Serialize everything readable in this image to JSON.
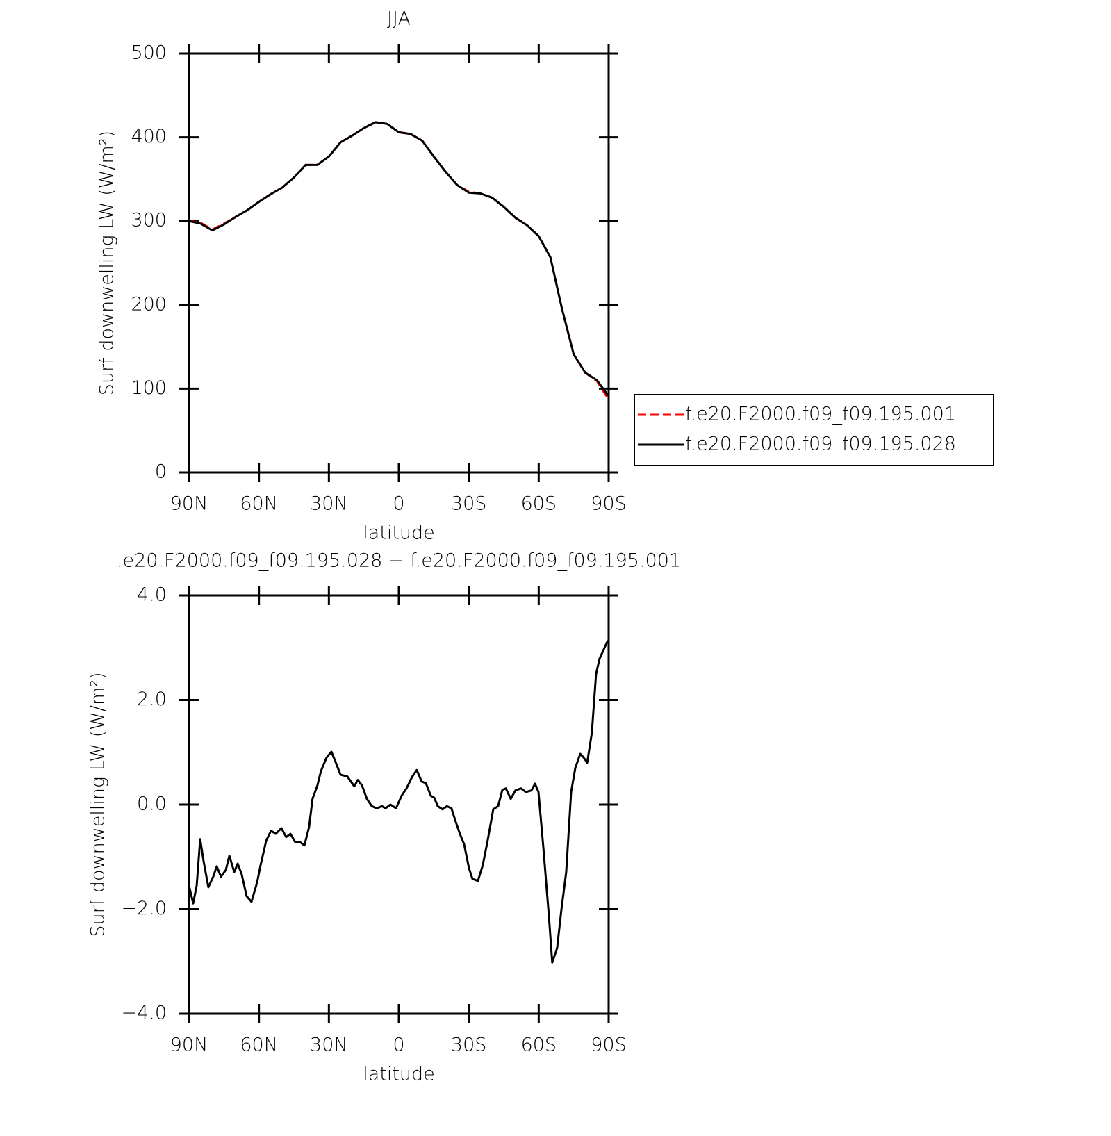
{
  "chart_data": [
    {
      "type": "line",
      "title": "JJA",
      "x_label": "latitude",
      "y_label": "Surf downwelling LW (W/m²)",
      "x": [
        90,
        85,
        80,
        75,
        70,
        65,
        60,
        55,
        50,
        45,
        40,
        35,
        30,
        25,
        20,
        15,
        10,
        5,
        0,
        -5,
        -10,
        -15,
        -20,
        -25,
        -30,
        -35,
        -40,
        -45,
        -50,
        -55,
        -60,
        -65,
        -70,
        -75,
        -80,
        -85,
        -90
      ],
      "series": [
        {
          "name": "f.e20.F2000.f09_f09.195.001",
          "color": "#ff0000",
          "dash": true,
          "values": [
            300,
            298,
            290,
            297,
            305,
            313,
            323,
            332,
            340,
            352,
            367,
            367,
            377,
            394,
            402,
            411,
            418,
            416,
            406,
            404,
            396,
            377,
            359,
            343,
            335,
            333,
            328,
            317,
            304,
            295,
            282,
            257,
            195,
            141,
            119,
            109,
            87
          ]
        },
        {
          "name": "f.e20.F2000.f09_f09.195.028",
          "color": "#000000",
          "dash": false,
          "values": [
            300,
            297,
            289,
            296,
            305,
            313,
            323,
            332,
            340,
            352,
            367,
            367,
            377,
            394,
            402,
            411,
            418,
            416,
            406,
            404,
            396,
            377,
            359,
            343,
            334,
            333,
            328,
            317,
            304,
            295,
            282,
            257,
            195,
            141,
            119,
            110,
            91
          ]
        }
      ],
      "xlim": [
        90,
        -90
      ],
      "ylim": [
        0,
        500
      ],
      "xticks": [
        {
          "value": 90,
          "label": "90N"
        },
        {
          "value": 60,
          "label": "60N"
        },
        {
          "value": 30,
          "label": "30N"
        },
        0,
        {
          "value": -30,
          "label": "30S"
        },
        {
          "value": -60,
          "label": "60S"
        },
        {
          "value": -90,
          "label": "90S"
        }
      ],
      "yticks": [
        0,
        100,
        200,
        300,
        400,
        500
      ],
      "legend": "right"
    },
    {
      "type": "line",
      "title": ".e20.F2000.f09_f09.195.028 − f.e20.F2000.f09_f09.195.001",
      "x_label": "latitude",
      "y_label": "Surf downwelling LW (W/m²)",
      "x": [
        90,
        88.2,
        86.7,
        85.2,
        83.7,
        81.7,
        79.6,
        78.1,
        76.3,
        74.2,
        72.7,
        70.6,
        69.1,
        67.4,
        65.3,
        63.2,
        60.8,
        59.3,
        56.9,
        54.8,
        52.8,
        50.4,
        48.3,
        46.5,
        44.4,
        42.3,
        40.5,
        38.5,
        37,
        34.9,
        33.4,
        31,
        28.9,
        27.1,
        25,
        22.1,
        19.1,
        17.6,
        15.8,
        13.7,
        11.6,
        9.5,
        7.2,
        5.7,
        3.6,
        1.2,
        -1.2,
        -3.3,
        -5.7,
        -7.7,
        -9.8,
        -11.6,
        -13.7,
        -15.2,
        -16.7,
        -18.8,
        -20.6,
        -22.6,
        -24.1,
        -26.2,
        -28,
        -30.1,
        -31.6,
        -33.9,
        -36,
        -38.1,
        -40.5,
        -42.6,
        -44.4,
        -45.9,
        -48,
        -50,
        -52.4,
        -54.5,
        -56.9,
        -58.4,
        -59.9,
        -62,
        -64.4,
        -65.8,
        -67.9,
        -69.7,
        -71.8,
        -73.9,
        -75.7,
        -77.8,
        -79.3,
        -80.8,
        -82.8,
        -84.6,
        -86.1,
        -88.2,
        -89.7
      ],
      "values": [
        -1.55,
        -1.89,
        -1.55,
        -0.66,
        -1.09,
        -1.58,
        -1.38,
        -1.18,
        -1.38,
        -1.25,
        -0.98,
        -1.29,
        -1.13,
        -1.33,
        -1.75,
        -1.86,
        -1.49,
        -1.16,
        -0.69,
        -0.5,
        -0.56,
        -0.45,
        -0.62,
        -0.56,
        -0.72,
        -0.72,
        -0.78,
        -0.43,
        0.11,
        0.37,
        0.64,
        0.9,
        1.01,
        0.81,
        0.57,
        0.54,
        0.35,
        0.47,
        0.37,
        0.11,
        -0.03,
        -0.07,
        -0.03,
        -0.07,
        0,
        -0.07,
        0.17,
        0.31,
        0.53,
        0.66,
        0.44,
        0.41,
        0.17,
        0.13,
        -0.03,
        -0.09,
        -0.03,
        -0.07,
        -0.29,
        -0.56,
        -0.76,
        -1.22,
        -1.42,
        -1.46,
        -1.16,
        -0.69,
        -0.09,
        -0.03,
        0.28,
        0.31,
        0.11,
        0.27,
        0.31,
        0.24,
        0.27,
        0.4,
        0.24,
        -0.82,
        -2.15,
        -3.02,
        -2.75,
        -2.02,
        -1.29,
        0.24,
        0.7,
        0.97,
        0.9,
        0.8,
        1.37,
        2.5,
        2.79,
        3,
        3.14
      ],
      "color": "#000000",
      "xlim": [
        90,
        -90
      ],
      "ylim": [
        -4,
        4
      ],
      "xticks": [
        {
          "value": 90,
          "label": "90N"
        },
        {
          "value": 60,
          "label": "60N"
        },
        {
          "value": 30,
          "label": "30N"
        },
        0,
        {
          "value": -30,
          "label": "30S"
        },
        {
          "value": -60,
          "label": "60S"
        },
        {
          "value": -90,
          "label": "90S"
        }
      ],
      "yticks": [
        {
          "value": -4,
          "label": "−4.0"
        },
        {
          "value": -2,
          "label": "−2.0"
        },
        {
          "value": 0,
          "label": "0.0"
        },
        {
          "value": 2,
          "label": "2.0"
        },
        {
          "value": 4,
          "label": "4.0"
        }
      ]
    }
  ]
}
